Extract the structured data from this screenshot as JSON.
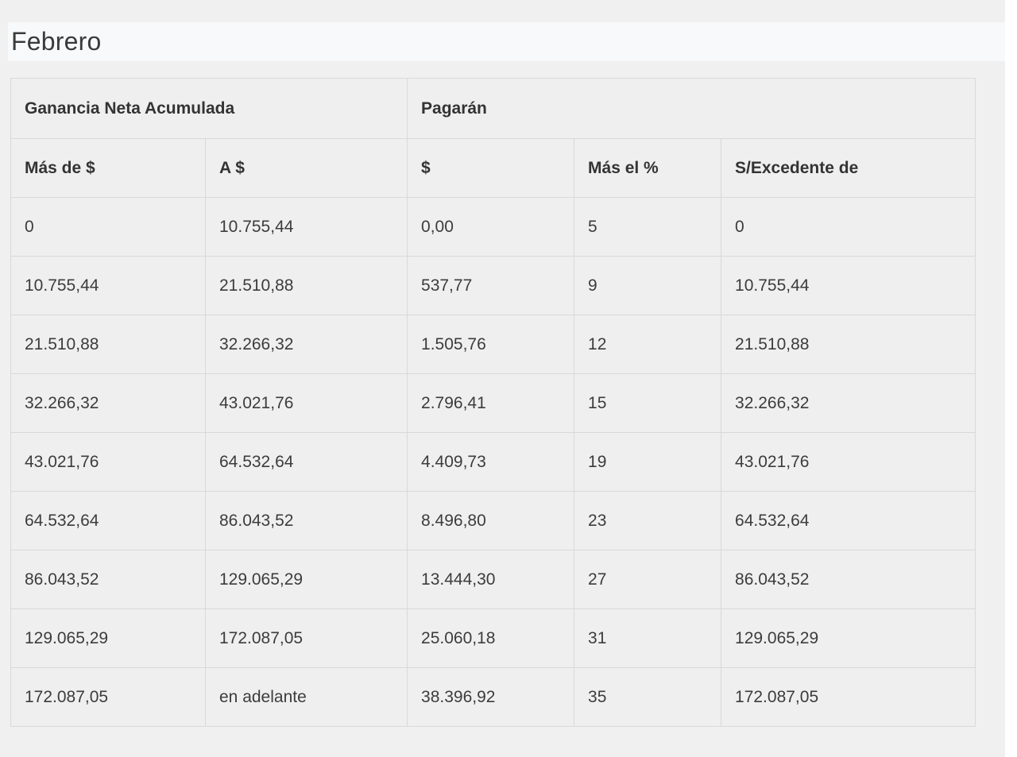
{
  "page": {
    "title": "Febrero",
    "colors": {
      "content_background": "#f0f0f0",
      "title_bar_background": "#f8f9fb",
      "cell_background": "#efefef",
      "grid_border": "#d9d9d9",
      "outer_border": "#cccccc",
      "text": "#3c3c3c"
    }
  },
  "table": {
    "group_headers": [
      {
        "label": "Ganancia Neta Acumulada",
        "colspan": 2
      },
      {
        "label": "Pagarán",
        "colspan": 3
      }
    ],
    "columns": [
      "Más de $",
      "A $",
      "$",
      "Más el %",
      "S/Excedente de"
    ],
    "rows": [
      [
        "0",
        "10.755,44",
        "0,00",
        "5",
        "0"
      ],
      [
        "10.755,44",
        "21.510,88",
        "537,77",
        "9",
        "10.755,44"
      ],
      [
        "21.510,88",
        "32.266,32",
        "1.505,76",
        "12",
        "21.510,88"
      ],
      [
        "32.266,32",
        "43.021,76",
        "2.796,41",
        "15",
        "32.266,32"
      ],
      [
        "43.021,76",
        "64.532,64",
        "4.409,73",
        "19",
        "43.021,76"
      ],
      [
        "64.532,64",
        "86.043,52",
        "8.496,80",
        "23",
        "64.532,64"
      ],
      [
        "86.043,52",
        "129.065,29",
        "13.444,30",
        "27",
        "86.043,52"
      ],
      [
        "129.065,29",
        "172.087,05",
        "25.060,18",
        "31",
        "129.065,29"
      ],
      [
        "172.087,05",
        "en adelante",
        "38.396,92",
        "35",
        "172.087,05"
      ]
    ]
  }
}
